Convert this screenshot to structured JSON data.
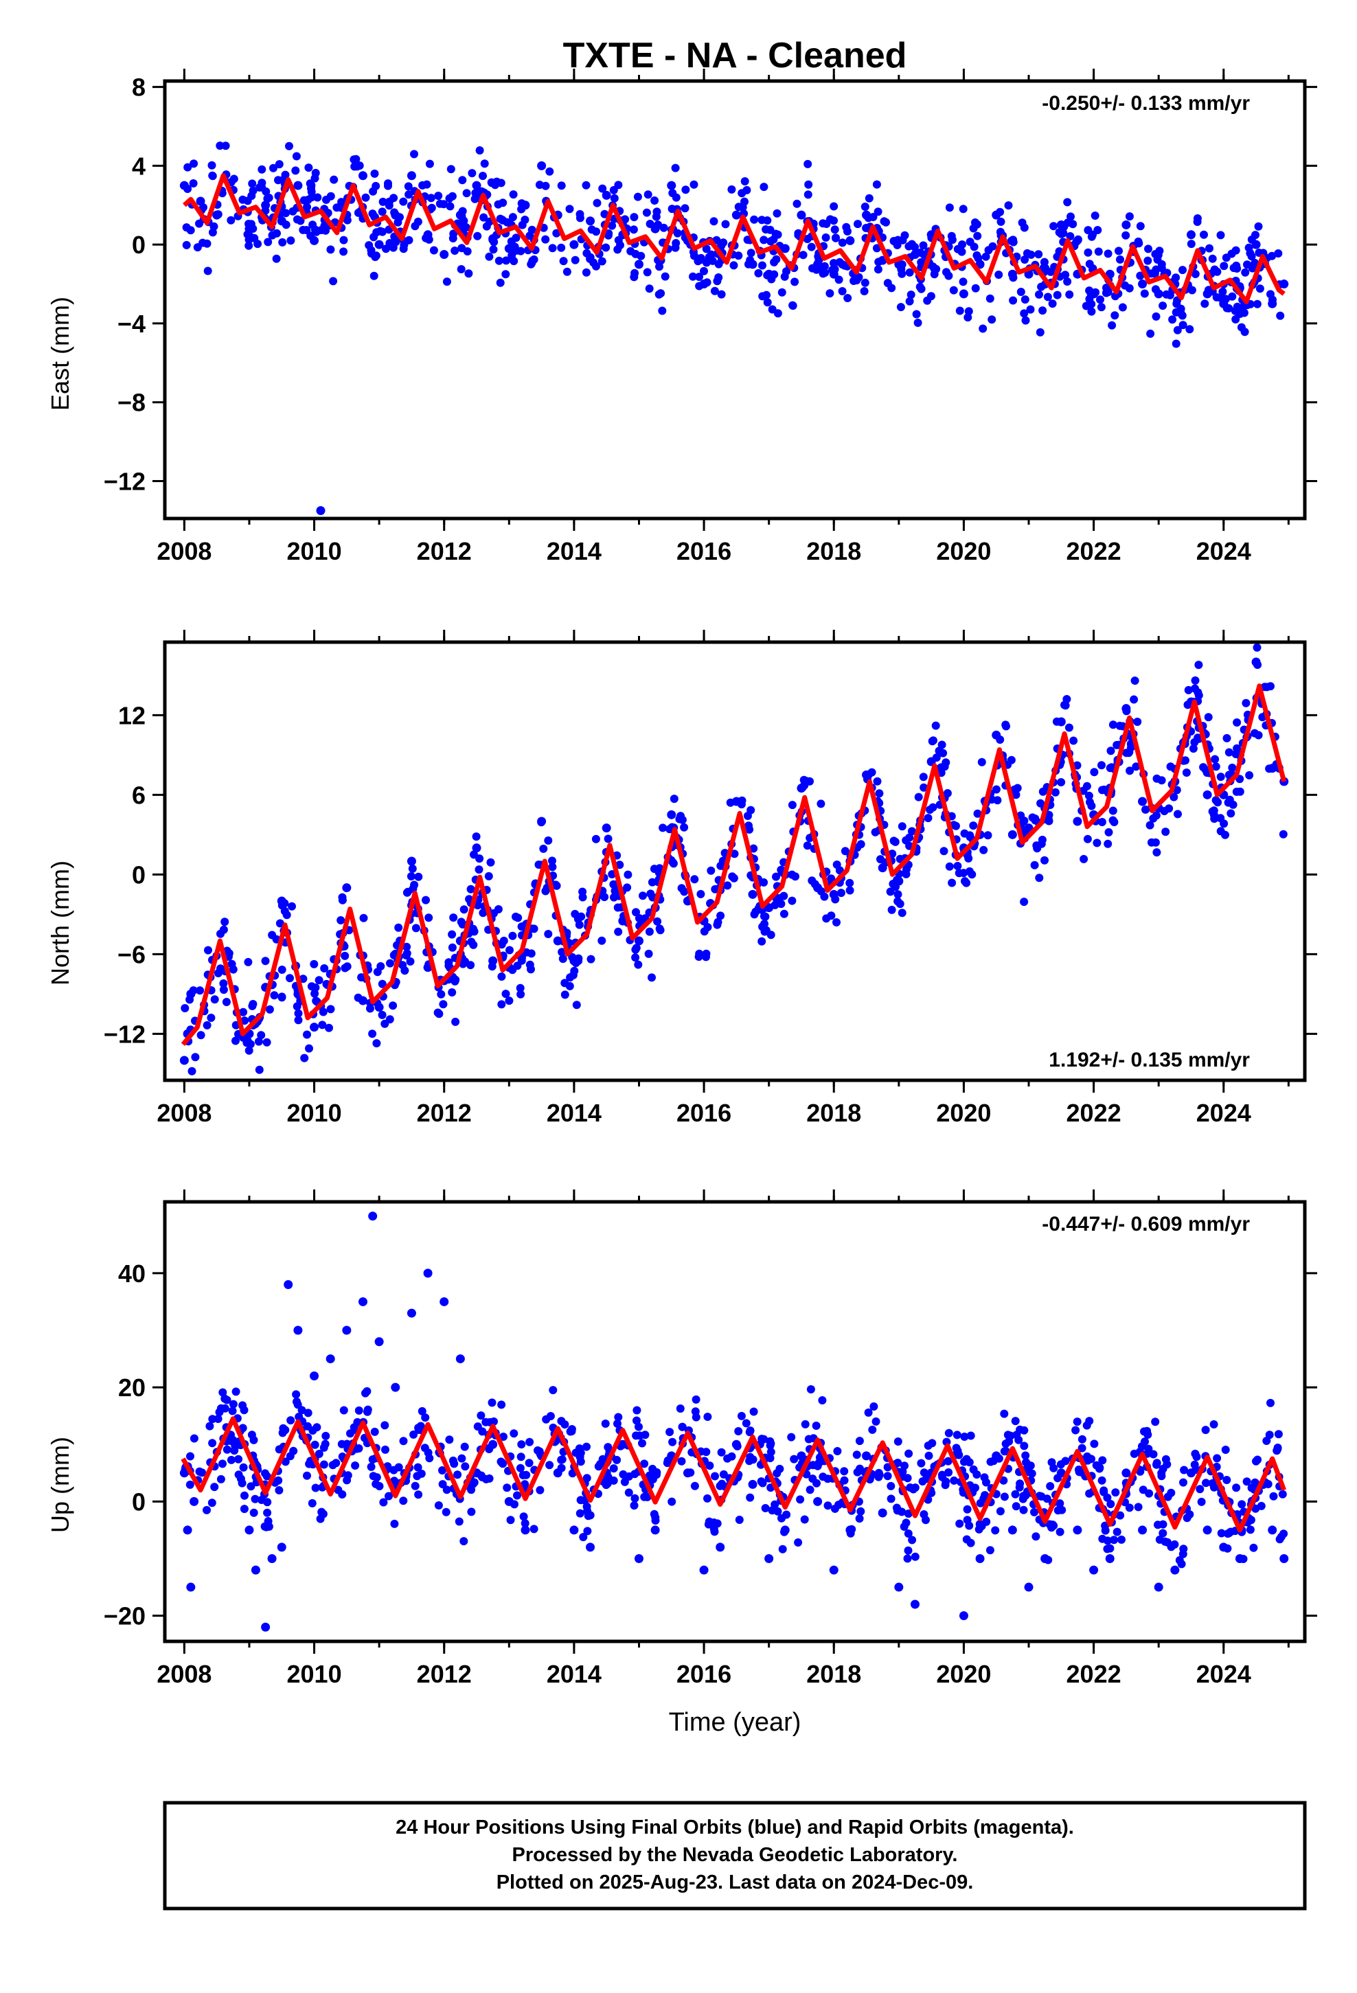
{
  "title": "TXTE  - NA - Cleaned",
  "xlabel": "Time (year)",
  "footer": [
    "24 Hour Positions Using Final Orbits (blue) and Rapid Orbits (magenta).",
    "Processed by the Nevada Geodetic Laboratory.",
    "Plotted on 2025-Aug-23. Last data on 2024-Dec-09."
  ],
  "colors": {
    "points": "#0000ff",
    "model": "#ff0000",
    "frame": "#000000"
  },
  "chart_data": [
    {
      "type": "scatter",
      "component": "east",
      "ylabel": "East (mm)",
      "rate": "-0.250+/- 0.133 mm/yr",
      "rate_position": "top-right",
      "xlim": [
        2007.7,
        2025.25
      ],
      "ylim": [
        -13.9,
        8.3
      ],
      "xticks": [
        2008,
        2010,
        2012,
        2014,
        2016,
        2018,
        2020,
        2022,
        2024
      ],
      "xtick_labels": [
        "2008",
        "2010",
        "2012",
        "2014",
        "2016",
        "2018",
        "2020",
        "2022",
        "2024"
      ],
      "yticks": [
        -12,
        -8,
        -4,
        0,
        4,
        8
      ],
      "ytick_labels": [
        "−12",
        "−8",
        "−4",
        "0",
        "4",
        "8"
      ],
      "grid": false,
      "series": [
        {
          "kind": "points",
          "x": [
            2008.0,
            2008.25,
            2008.5,
            2009.0,
            2009.25,
            2009.5,
            2009.75,
            2010.0,
            2010.1,
            2010.25,
            2010.5,
            2010.75,
            2011.0,
            2011.25,
            2011.5,
            2011.75,
            2012.0,
            2012.25,
            2012.5,
            2012.75,
            2013.0,
            2013.25,
            2013.5,
            2013.75,
            2014.0,
            2014.25,
            2014.5,
            2014.75,
            2015.0,
            2015.25,
            2015.5,
            2015.75,
            2016.0,
            2016.25,
            2016.5,
            2016.75,
            2017.0,
            2017.25,
            2017.5,
            2017.75,
            2018.0,
            2018.25,
            2018.5,
            2018.75,
            2019.0,
            2019.25,
            2019.5,
            2020.0,
            2020.25,
            2020.5,
            2020.75,
            2021.0,
            2021.25,
            2021.5,
            2021.75,
            2022.0,
            2022.25,
            2022.5,
            2022.75,
            2023.0,
            2023.25,
            2023.5,
            2023.75,
            2024.0,
            2024.25,
            2024.5,
            2024.75,
            2024.93
          ],
          "y": [
            3.0,
            2.2,
            1.5,
            0.8,
            2.0,
            1.2,
            3.0,
            0.2,
            -13.5,
            1.0,
            1.5,
            3.5,
            0.0,
            1.5,
            3.5,
            0.5,
            -0.5,
            1.5,
            3.0,
            0.3,
            -0.2,
            2.0,
            4.0,
            1.5,
            0.0,
            1.2,
            2.5,
            0.5,
            -1.0,
            0.8,
            3.0,
            0.2,
            -2.0,
            -0.5,
            1.5,
            -1.0,
            -1.5,
            -0.2,
            1.5,
            -1.0,
            -1.5,
            0.2,
            1.5,
            -0.8,
            -1.0,
            -0.5,
            0.5,
            -2.5,
            -1.0,
            1.5,
            -1.5,
            -1.5,
            -1.2,
            1.0,
            -1.5,
            -2.5,
            -1.5,
            1.0,
            -2.0,
            -2.5,
            -2.0,
            0.5,
            -2.5,
            -3.0,
            -3.5,
            0.0,
            -3.0,
            -2.0
          ]
        },
        {
          "kind": "model",
          "trend": -0.25,
          "x": [
            2008.0,
            2008.1,
            2008.35,
            2008.6,
            2008.85,
            2009.1,
            2009.35,
            2009.6,
            2009.85,
            2010.1,
            2010.35,
            2010.6,
            2010.85,
            2011.1,
            2011.35,
            2011.6,
            2011.85,
            2012.1,
            2012.35,
            2012.6,
            2012.85,
            2013.1,
            2013.35,
            2013.6,
            2013.85,
            2014.1,
            2014.35,
            2014.6,
            2014.85,
            2015.1,
            2015.35,
            2015.6,
            2015.85,
            2016.1,
            2016.35,
            2016.6,
            2016.85,
            2017.1,
            2017.35,
            2017.6,
            2017.85,
            2018.1,
            2018.35,
            2018.6,
            2018.85,
            2019.1,
            2019.35,
            2019.6,
            2019.85,
            2020.1,
            2020.35,
            2020.6,
            2020.85,
            2021.1,
            2021.35,
            2021.6,
            2021.85,
            2022.1,
            2022.35,
            2022.6,
            2022.85,
            2023.1,
            2023.35,
            2023.6,
            2023.85,
            2024.1,
            2024.35,
            2024.6,
            2024.85,
            2024.93
          ],
          "y": [
            2.0,
            2.3,
            1.1,
            3.5,
            1.6,
            1.9,
            0.9,
            3.3,
            1.4,
            1.7,
            0.6,
            3.0,
            1.0,
            1.4,
            0.3,
            2.7,
            0.8,
            1.2,
            0.1,
            2.5,
            0.6,
            0.9,
            -0.2,
            2.2,
            0.3,
            0.7,
            -0.4,
            2.0,
            0.1,
            0.4,
            -0.7,
            1.7,
            -0.2,
            0.2,
            -0.9,
            1.4,
            -0.4,
            -0.1,
            -1.2,
            1.2,
            -0.7,
            -0.3,
            -1.4,
            0.9,
            -0.9,
            -0.6,
            -1.7,
            0.7,
            -1.2,
            -0.8,
            -1.9,
            0.4,
            -1.4,
            -1.1,
            -2.2,
            0.2,
            -1.7,
            -1.3,
            -2.4,
            -0.1,
            -1.9,
            -1.6,
            -2.7,
            -0.3,
            -2.2,
            -1.8,
            -2.9,
            -0.6,
            -2.3,
            -2.5
          ]
        }
      ]
    },
    {
      "type": "scatter",
      "component": "north",
      "ylabel": "North (mm)",
      "rate": "1.192+/- 0.135 mm/yr",
      "rate_position": "bottom-right",
      "xlim": [
        2007.7,
        2025.25
      ],
      "ylim": [
        -15.5,
        17.5
      ],
      "xticks": [
        2008,
        2010,
        2012,
        2014,
        2016,
        2018,
        2020,
        2022,
        2024
      ],
      "xtick_labels": [
        "2008",
        "2010",
        "2012",
        "2014",
        "2016",
        "2018",
        "2020",
        "2022",
        "2024"
      ],
      "yticks": [
        -12,
        -6,
        0,
        6,
        12
      ],
      "ytick_labels": [
        "−12",
        "−6",
        "0",
        "6",
        "12"
      ],
      "grid": false,
      "series": [
        {
          "kind": "points",
          "x": [
            2008.0,
            2008.05,
            2008.1,
            2009.0,
            2009.25,
            2009.5,
            2009.75,
            2010.0,
            2010.25,
            2010.5,
            2010.75,
            2011.0,
            2011.25,
            2011.5,
            2011.75,
            2012.0,
            2012.25,
            2012.5,
            2012.75,
            2013.0,
            2013.25,
            2013.5,
            2013.75,
            2014.0,
            2014.25,
            2014.5,
            2014.75,
            2015.0,
            2015.25,
            2015.5,
            2015.75,
            2016.0,
            2016.25,
            2016.5,
            2016.75,
            2017.0,
            2017.25,
            2017.5,
            2017.75,
            2018.0,
            2018.25,
            2018.5,
            2018.75,
            2019.0,
            2019.25,
            2019.5,
            2020.0,
            2020.25,
            2020.5,
            2020.75,
            2021.0,
            2021.25,
            2021.5,
            2021.75,
            2022.0,
            2022.25,
            2022.5,
            2022.75,
            2023.0,
            2023.25,
            2023.5,
            2023.75,
            2024.0,
            2024.25,
            2024.5,
            2024.75,
            2024.93
          ],
          "y": [
            -14.0,
            -12.0,
            -9.0,
            -12.0,
            -8.5,
            -2.0,
            -9.0,
            -11.5,
            -7.5,
            -1.0,
            -9.5,
            -10.0,
            -6.0,
            1.0,
            -7.0,
            -8.0,
            -5.0,
            2.0,
            -6.5,
            -7.0,
            -4.0,
            4.0,
            -5.0,
            -6.5,
            -3.0,
            3.5,
            -3.5,
            -5.0,
            -2.5,
            4.5,
            -2.0,
            -3.5,
            -1.0,
            5.5,
            -1.5,
            -2.5,
            0.0,
            6.5,
            -1.0,
            -1.5,
            1.0,
            7.5,
            0.5,
            -0.5,
            2.0,
            8.5,
            2.0,
            3.0,
            10.5,
            3.0,
            3.5,
            5.0,
            11.5,
            4.0,
            4.5,
            6.5,
            12.5,
            5.5,
            5.0,
            7.0,
            13.0,
            6.0,
            6.0,
            9.0,
            16.0,
            8.0,
            7.0
          ]
        },
        {
          "kind": "model",
          "trend": 1.192,
          "x": [
            2007.98,
            2008.2,
            2008.55,
            2008.9,
            2009.2,
            2009.55,
            2009.9,
            2010.2,
            2010.55,
            2010.9,
            2011.2,
            2011.55,
            2011.9,
            2012.2,
            2012.55,
            2012.9,
            2013.2,
            2013.55,
            2013.9,
            2014.2,
            2014.55,
            2014.9,
            2015.2,
            2015.55,
            2015.9,
            2016.2,
            2016.55,
            2016.9,
            2017.2,
            2017.55,
            2017.9,
            2018.2,
            2018.55,
            2018.9,
            2019.2,
            2019.55,
            2019.9,
            2020.2,
            2020.55,
            2020.9,
            2021.2,
            2021.55,
            2021.9,
            2022.2,
            2022.55,
            2022.9,
            2023.2,
            2023.55,
            2023.9,
            2024.2,
            2024.55,
            2024.93
          ],
          "y": [
            -12.8,
            -11.5,
            -5.0,
            -12.0,
            -10.5,
            -3.8,
            -10.8,
            -9.3,
            -2.6,
            -9.6,
            -8.1,
            -1.4,
            -8.4,
            -6.9,
            -0.2,
            -7.2,
            -5.7,
            1.0,
            -6.0,
            -4.5,
            2.2,
            -4.8,
            -3.3,
            3.4,
            -3.6,
            -2.1,
            4.6,
            -2.4,
            -0.9,
            5.8,
            -1.2,
            0.3,
            7.0,
            0.0,
            1.5,
            8.2,
            1.2,
            2.7,
            9.4,
            2.4,
            3.9,
            10.6,
            3.6,
            5.1,
            11.8,
            4.8,
            6.3,
            13.0,
            6.0,
            7.5,
            14.2,
            7.0
          ]
        }
      ]
    },
    {
      "type": "scatter",
      "component": "up",
      "ylabel": "Up (mm)",
      "rate": "-0.447+/- 0.609 mm/yr",
      "rate_position": "top-right",
      "xlim": [
        2007.7,
        2025.25
      ],
      "ylim": [
        -24.5,
        52.5
      ],
      "xticks": [
        2008,
        2010,
        2012,
        2014,
        2016,
        2018,
        2020,
        2022,
        2024
      ],
      "xtick_labels": [
        "2008",
        "2010",
        "2012",
        "2014",
        "2016",
        "2018",
        "2020",
        "2022",
        "2024"
      ],
      "yticks": [
        -20,
        0,
        20,
        40
      ],
      "ytick_labels": [
        "−20",
        "0",
        "20",
        "40"
      ],
      "grid": false,
      "series": [
        {
          "kind": "points",
          "x": [
            2008.0,
            2008.05,
            2008.1,
            2008.15,
            2009.0,
            2009.1,
            2009.25,
            2009.35,
            2009.5,
            2009.6,
            2009.75,
            2010.0,
            2010.25,
            2010.5,
            2010.75,
            2010.9,
            2011.0,
            2011.25,
            2011.5,
            2011.75,
            2012.0,
            2012.25,
            2012.5,
            2012.75,
            2013.0,
            2013.25,
            2013.5,
            2013.75,
            2014.0,
            2014.25,
            2014.5,
            2014.75,
            2015.0,
            2015.25,
            2015.5,
            2015.75,
            2016.0,
            2016.25,
            2016.5,
            2016.75,
            2017.0,
            2017.25,
            2017.5,
            2017.75,
            2018.0,
            2018.25,
            2018.5,
            2018.75,
            2019.0,
            2019.25,
            2019.5,
            2020.0,
            2020.25,
            2020.5,
            2020.75,
            2021.0,
            2021.25,
            2021.5,
            2021.75,
            2022.0,
            2022.25,
            2022.5,
            2022.75,
            2023.0,
            2023.25,
            2023.5,
            2023.75,
            2024.0,
            2024.25,
            2024.5,
            2024.75,
            2024.93
          ],
          "y": [
            5.0,
            -5.0,
            -15.0,
            0.0,
            -5.0,
            -12.0,
            -22.0,
            -10.0,
            -8.0,
            38.0,
            30.0,
            22.0,
            25.0,
            30.0,
            35.0,
            50.0,
            28.0,
            20.0,
            33.0,
            40.0,
            35.0,
            25.0,
            5.0,
            10.0,
            0.0,
            -5.0,
            8.0,
            5.0,
            -5.0,
            -8.0,
            5.0,
            10.0,
            -10.0,
            -5.0,
            8.0,
            5.0,
            -12.0,
            -8.0,
            10.0,
            3.0,
            -10.0,
            -5.0,
            8.0,
            0.0,
            -12.0,
            -5.0,
            8.0,
            -2.0,
            -15.0,
            -18.0,
            5.0,
            -20.0,
            -10.0,
            8.0,
            -5.0,
            -15.0,
            -10.0,
            5.0,
            -5.0,
            -12.0,
            -10.0,
            5.0,
            -5.0,
            -15.0,
            -12.0,
            5.0,
            -5.0,
            -8.0,
            -10.0,
            3.0,
            -5.0,
            -10.0
          ]
        },
        {
          "kind": "model",
          "trend": -0.447,
          "x": [
            2007.98,
            2008.25,
            2008.75,
            2009.25,
            2009.75,
            2010.25,
            2010.75,
            2011.25,
            2011.75,
            2012.25,
            2012.75,
            2013.25,
            2013.75,
            2014.25,
            2014.75,
            2015.25,
            2015.75,
            2016.25,
            2016.75,
            2017.25,
            2017.75,
            2018.25,
            2018.75,
            2019.25,
            2019.75,
            2020.25,
            2020.75,
            2021.25,
            2021.75,
            2022.25,
            2022.75,
            2023.25,
            2023.75,
            2024.25,
            2024.75,
            2024.93
          ],
          "y": [
            7.5,
            2.0,
            14.5,
            1.5,
            14.0,
            1.3,
            13.8,
            1.0,
            13.5,
            0.8,
            13.2,
            0.5,
            12.8,
            0.2,
            12.5,
            -0.1,
            12.0,
            -0.5,
            11.3,
            -1.0,
            10.8,
            -1.5,
            10.3,
            -2.5,
            9.8,
            -3.0,
            9.3,
            -3.5,
            8.8,
            -4.0,
            8.3,
            -4.5,
            7.8,
            -5.0,
            7.5,
            2.0
          ]
        }
      ]
    }
  ]
}
